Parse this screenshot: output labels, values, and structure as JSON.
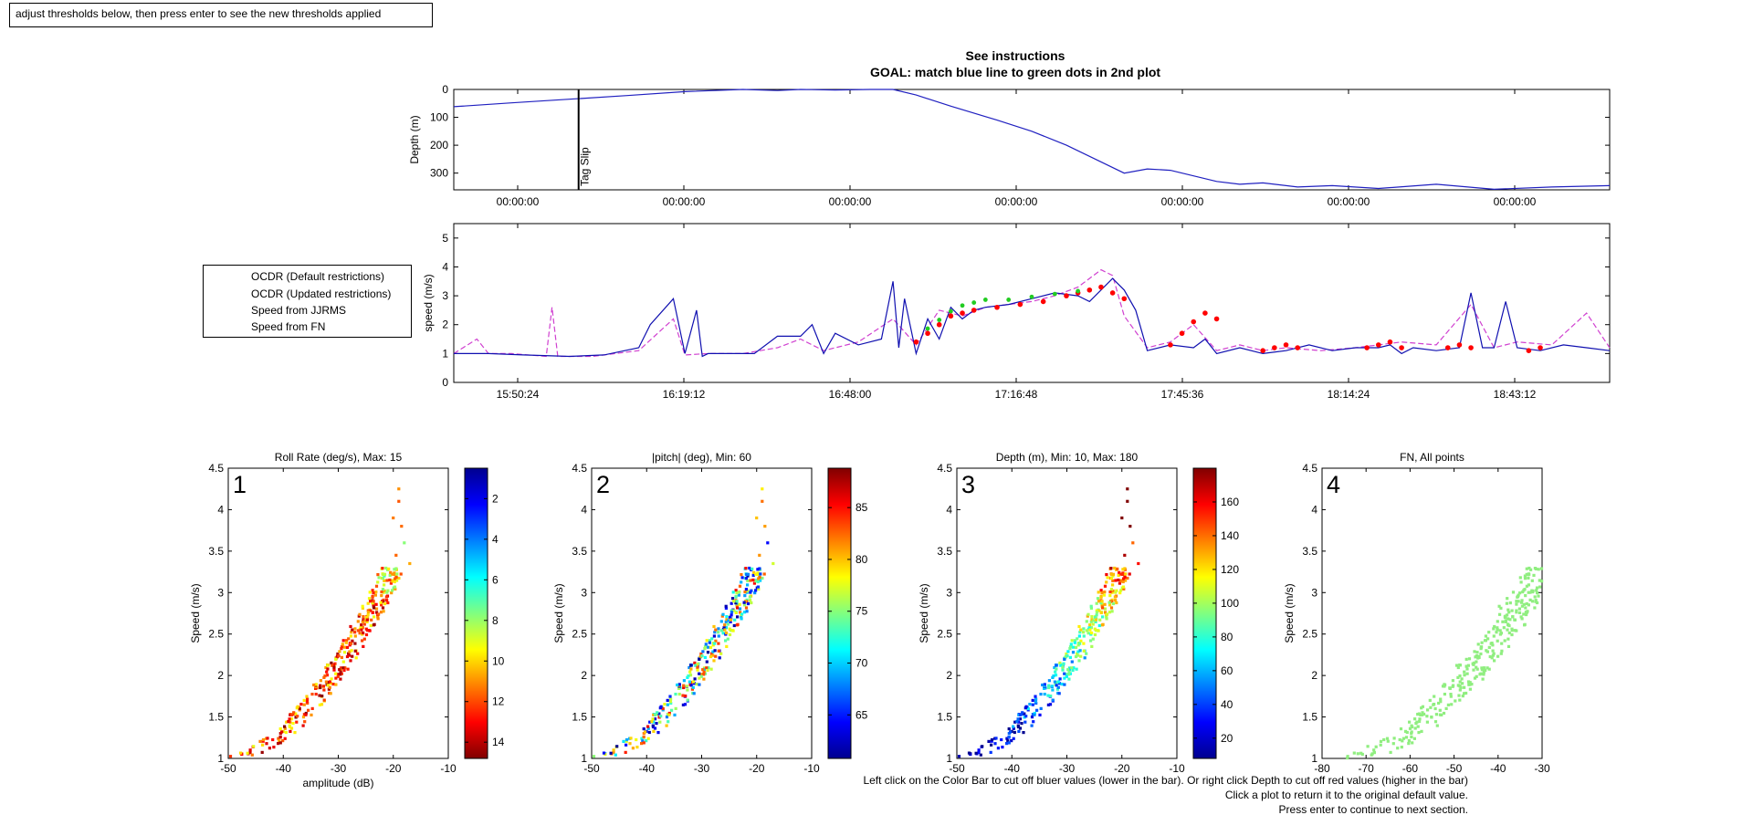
{
  "instruction_box": "adjust thresholds below, then press enter to see the new thresholds applied",
  "figure_title": [
    "See instructions",
    "GOAL: match blue line to green dots in 2nd plot"
  ],
  "legend": {
    "items": [
      {
        "label": "OCDR (Default restrictions)",
        "color": "#ffffff",
        "style": "none"
      },
      {
        "label": "OCDR (Updated restrictions)",
        "color": "#ffffff",
        "style": "none"
      },
      {
        "label": "Speed from JJRMS",
        "color": "#ffffff",
        "style": "none"
      },
      {
        "label": "Speed from FN",
        "color": "#ffffff",
        "style": "none"
      }
    ]
  },
  "colors": {
    "depth_line": "#2020c0",
    "speed_jjrms": "#1010b0",
    "speed_fn": "#d040d0",
    "ocdr_default": "#ff0000",
    "ocdr_updated": "#22cc22",
    "fn_scatter": "#90ee80"
  },
  "bottom_notes": [
    "Left click on the Color Bar to cut off bluer values (lower in the bar). Or right click Depth to cut off red values (higher in the bar)",
    "Click a plot to return it to the original default value.",
    "Press enter to continue to next section."
  ],
  "chart_data": [
    {
      "type": "line",
      "name": "depth",
      "title": "",
      "xlabel": "",
      "ylabel": "Depth (m)",
      "ylim": [
        0,
        360
      ],
      "y_reversed": true,
      "yticks": [
        0,
        100,
        200,
        300
      ],
      "xticklabels": [
        "00:00:00",
        "00:00:00",
        "00:00:00",
        "00:00:00",
        "00:00:00",
        "00:00:00",
        "00:00:00"
      ],
      "x": [
        0,
        0.05,
        0.1,
        0.15,
        0.2,
        0.25,
        0.28,
        0.3,
        0.33,
        0.36,
        0.38,
        0.4,
        0.43,
        0.47,
        0.5,
        0.53,
        0.56,
        0.58,
        0.6,
        0.62,
        0.64,
        0.66,
        0.68,
        0.7,
        0.73,
        0.76,
        0.8,
        0.85,
        0.9,
        0.95,
        1.0
      ],
      "values": [
        62,
        48,
        35,
        22,
        8,
        0,
        4,
        0,
        2,
        0,
        0,
        20,
        60,
        110,
        150,
        200,
        260,
        300,
        285,
        290,
        310,
        330,
        340,
        335,
        350,
        345,
        355,
        340,
        358,
        350,
        345
      ],
      "annotation": {
        "text": "Tag Slip",
        "x": 0.108
      }
    },
    {
      "type": "line",
      "name": "speed",
      "title": "",
      "xlabel": "",
      "ylabel": "speed (m/s)",
      "ylim": [
        0,
        5.5
      ],
      "yticks": [
        0,
        1,
        2,
        3,
        4,
        5
      ],
      "xticklabels": [
        "15:50:24",
        "16:19:12",
        "16:48:00",
        "17:16:48",
        "17:45:36",
        "18:14:24",
        "18:43:12"
      ],
      "series": [
        {
          "key": "jjrms",
          "x": [
            0,
            0.03,
            0.06,
            0.1,
            0.13,
            0.16,
            0.17,
            0.19,
            0.2,
            0.21,
            0.215,
            0.22,
            0.23,
            0.24,
            0.26,
            0.28,
            0.3,
            0.31,
            0.32,
            0.33,
            0.35,
            0.37,
            0.38,
            0.385,
            0.39,
            0.4,
            0.41,
            0.42,
            0.43,
            0.44,
            0.45,
            0.46,
            0.48,
            0.5,
            0.52,
            0.54,
            0.55,
            0.57,
            0.58,
            0.59,
            0.6,
            0.62,
            0.64,
            0.65,
            0.66,
            0.68,
            0.7,
            0.72,
            0.74,
            0.76,
            0.78,
            0.8,
            0.81,
            0.82,
            0.83,
            0.85,
            0.87,
            0.88,
            0.89,
            0.9,
            0.91,
            0.92,
            0.94,
            0.96,
            0.98,
            1.0
          ],
          "values": [
            1.0,
            1.0,
            0.95,
            0.9,
            0.95,
            1.2,
            2.0,
            2.9,
            1.0,
            2.5,
            0.9,
            1.0,
            1.0,
            1.0,
            1.0,
            1.6,
            1.6,
            2.0,
            1.0,
            1.7,
            1.3,
            1.5,
            3.5,
            1.2,
            2.9,
            1.0,
            2.2,
            1.5,
            2.6,
            2.2,
            2.5,
            2.6,
            2.7,
            2.9,
            3.1,
            3.0,
            2.8,
            3.6,
            3.2,
            2.5,
            1.1,
            1.3,
            1.2,
            1.5,
            1.0,
            1.2,
            1.0,
            1.1,
            1.3,
            1.1,
            1.2,
            1.2,
            1.3,
            1.0,
            1.2,
            1.1,
            1.2,
            3.1,
            1.2,
            1.2,
            2.8,
            1.2,
            1.1,
            1.3,
            1.2,
            1.1
          ]
        },
        {
          "key": "fn",
          "x": [
            0,
            0.02,
            0.03,
            0.05,
            0.08,
            0.085,
            0.09,
            0.12,
            0.16,
            0.19,
            0.2,
            0.22,
            0.25,
            0.28,
            0.3,
            0.32,
            0.35,
            0.38,
            0.4,
            0.42,
            0.44,
            0.46,
            0.48,
            0.5,
            0.52,
            0.54,
            0.55,
            0.56,
            0.57,
            0.58,
            0.6,
            0.62,
            0.64,
            0.66,
            0.68,
            0.7,
            0.72,
            0.75,
            0.78,
            0.8,
            0.82,
            0.85,
            0.88,
            0.9,
            0.92,
            0.95,
            0.98,
            1.0
          ],
          "values": [
            1.0,
            1.5,
            1.0,
            1.0,
            0.9,
            2.6,
            0.9,
            0.9,
            1.1,
            2.2,
            0.95,
            1.0,
            1.0,
            1.2,
            1.5,
            1.1,
            1.4,
            2.2,
            1.3,
            2.5,
            2.3,
            2.6,
            2.7,
            2.8,
            3.0,
            3.3,
            3.6,
            3.9,
            3.7,
            2.3,
            1.2,
            1.4,
            2.0,
            1.1,
            1.3,
            1.1,
            1.2,
            1.1,
            1.2,
            1.3,
            1.4,
            1.3,
            2.7,
            1.2,
            1.4,
            1.3,
            2.4,
            1.2
          ]
        },
        {
          "key": "ocdr_default",
          "x": [
            0.4,
            0.41,
            0.42,
            0.43,
            0.44,
            0.45,
            0.47,
            0.49,
            0.51,
            0.53,
            0.54,
            0.55,
            0.56,
            0.57,
            0.58,
            0.62,
            0.63,
            0.64,
            0.65,
            0.66,
            0.7,
            0.71,
            0.72,
            0.73,
            0.79,
            0.8,
            0.81,
            0.82,
            0.86,
            0.87,
            0.88,
            0.93,
            0.94
          ],
          "values": [
            1.4,
            1.7,
            2.0,
            2.3,
            2.4,
            2.5,
            2.6,
            2.7,
            2.8,
            3.0,
            3.1,
            3.2,
            3.3,
            3.1,
            2.9,
            1.3,
            1.7,
            2.1,
            2.4,
            2.2,
            1.1,
            1.2,
            1.3,
            1.2,
            1.2,
            1.3,
            1.4,
            1.2,
            1.2,
            1.3,
            1.2,
            1.1,
            1.2
          ]
        },
        {
          "key": "ocdr_updated",
          "x": [
            0.41,
            0.42,
            0.43,
            0.44,
            0.45,
            0.46,
            0.48,
            0.5,
            0.52,
            0.54
          ],
          "values": [
            1.8,
            2.1,
            2.4,
            2.6,
            2.7,
            2.8,
            2.8,
            2.9,
            3.0,
            3.1
          ]
        }
      ]
    },
    {
      "type": "scatter",
      "panel": "1",
      "title": "Roll Rate (deg/s), Max: 15",
      "xlabel": "amplitude (dB)",
      "ylabel": "Speed (m/s)",
      "xlim": [
        -50,
        -10
      ],
      "ylim": [
        1,
        4.5
      ],
      "colorbar": {
        "min": 0.5,
        "max": 14.8,
        "ticks": [
          2,
          4,
          6,
          8,
          10,
          12,
          14
        ],
        "reversed": true
      }
    },
    {
      "type": "scatter",
      "panel": "2",
      "title": "|pitch| (deg), Min: 60",
      "xlabel": "",
      "ylabel": "Speed (m/s)",
      "xlim": [
        -50,
        -10
      ],
      "ylim": [
        1,
        4.5
      ],
      "colorbar": {
        "min": 60.8,
        "max": 88.8,
        "ticks": [
          65,
          70,
          75,
          80,
          85
        ],
        "reversed": false
      }
    },
    {
      "type": "scatter",
      "panel": "3",
      "title": "Depth (m), Min: 10, Max: 180",
      "xlabel": "",
      "ylabel": "Speed (m/s)",
      "xlim": [
        -50,
        -10
      ],
      "ylim": [
        1,
        4.5
      ],
      "colorbar": {
        "min": 8,
        "max": 180,
        "ticks": [
          20,
          40,
          60,
          80,
          100,
          120,
          140,
          160
        ],
        "reversed": false
      }
    },
    {
      "type": "scatter",
      "panel": "4",
      "title": "FN, All points",
      "xlabel": "",
      "ylabel": "Speed (m/s)",
      "xlim": [
        -80,
        -30
      ],
      "ylim": [
        1,
        4.5
      ]
    }
  ]
}
